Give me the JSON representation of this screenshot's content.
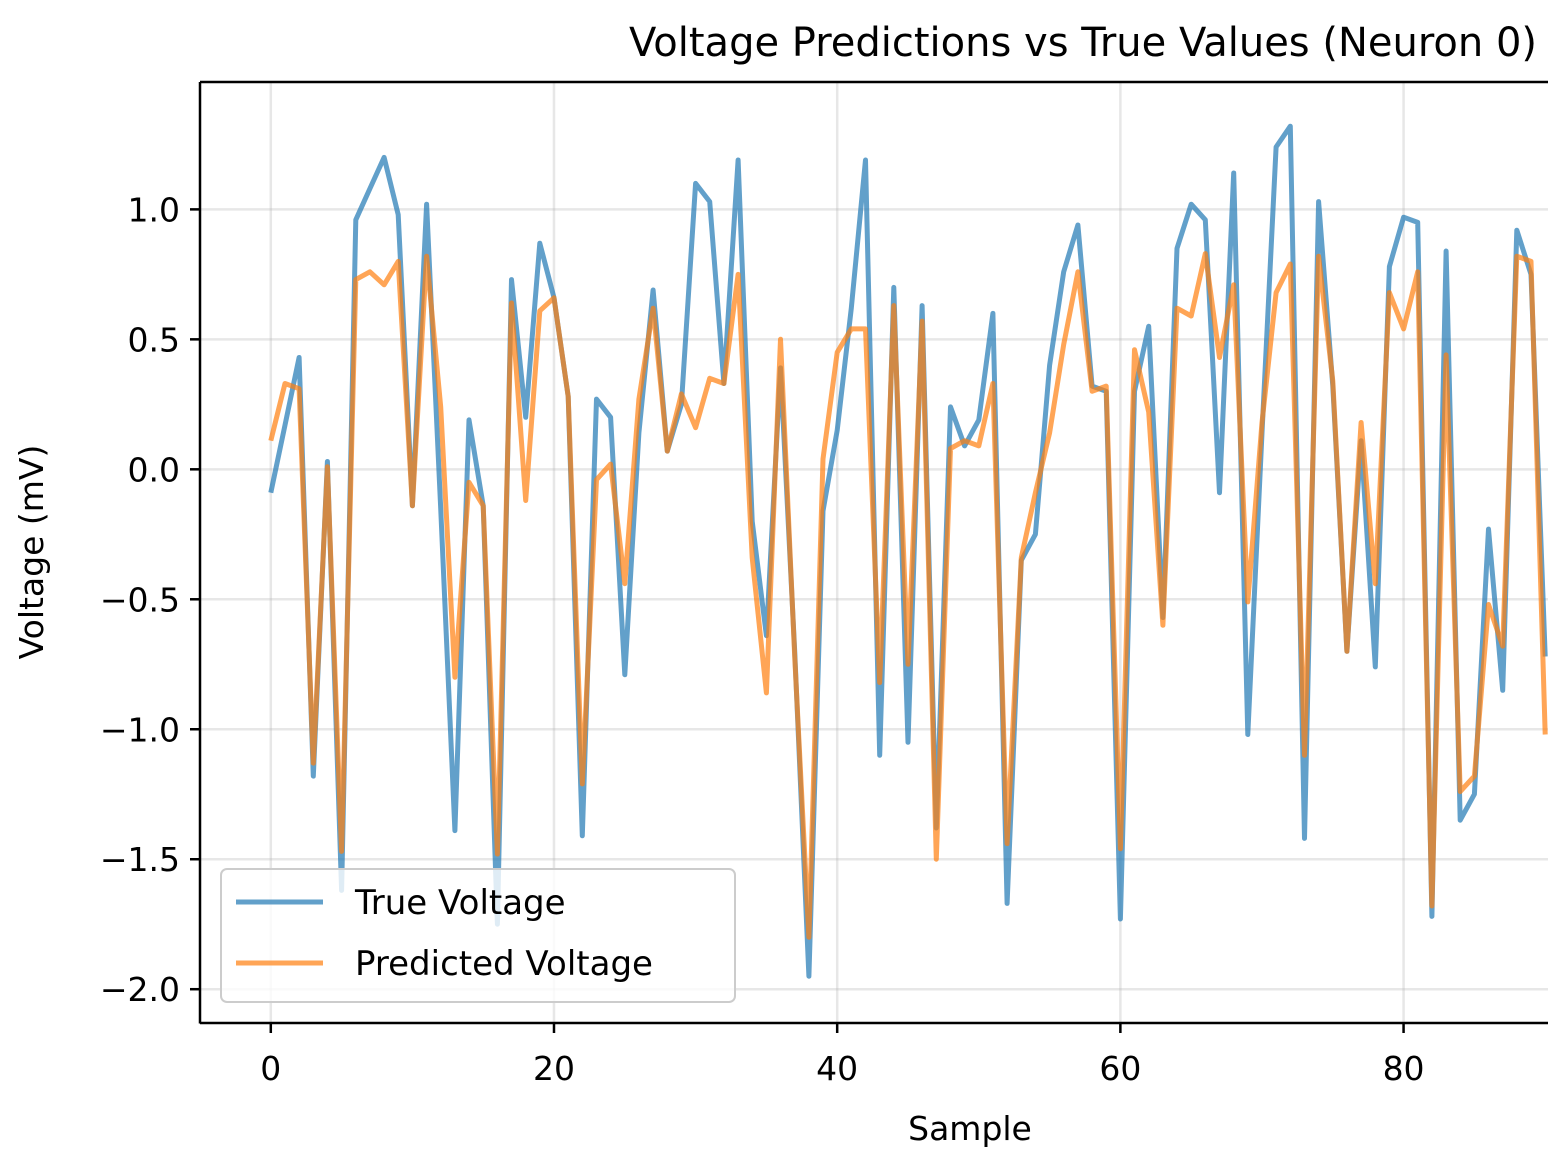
{
  "chart_data": {
    "type": "line",
    "title": "Voltage Predictions vs True Values (Neuron 0)",
    "xlabel": "Sample",
    "ylabel": "Voltage (mV)",
    "xlim": [
      -5,
      90.2
    ],
    "ylim": [
      -2.13,
      1.49
    ],
    "xticks": [
      0,
      20,
      40,
      60,
      80
    ],
    "xtick_labels": [
      "0",
      "20",
      "40",
      "60",
      "80"
    ],
    "yticks": [
      1.0,
      0.5,
      0.0,
      -0.5,
      -1.0,
      -1.5,
      -2.0
    ],
    "ytick_labels": [
      "1.0",
      "0.5",
      "0.0",
      "−0.5",
      "−1.0",
      "−1.5",
      "−2.0"
    ],
    "grid": true,
    "legend_position": "lower-left",
    "series": [
      {
        "name": "True Voltage",
        "color": "#1f77b4",
        "values": [
          -0.09,
          0.17,
          0.43,
          -1.18,
          0.03,
          -1.62,
          0.96,
          1.08,
          1.2,
          0.98,
          -0.14,
          1.02,
          -0.15,
          -1.39,
          0.19,
          -0.14,
          -1.75,
          0.73,
          0.2,
          0.87,
          0.66,
          0.28,
          -1.41,
          0.27,
          0.2,
          -0.79,
          0.14,
          0.69,
          0.07,
          0.25,
          1.1,
          1.03,
          0.33,
          1.19,
          -0.2,
          -0.64,
          0.39,
          -0.7,
          -1.95,
          -0.16,
          0.15,
          0.62,
          1.19,
          -1.1,
          0.7,
          -1.05,
          0.63,
          -1.38,
          0.24,
          0.09,
          0.19,
          0.6,
          -1.67,
          -0.35,
          -0.25,
          0.4,
          0.76,
          0.94,
          0.32,
          0.3,
          -1.73,
          0.3,
          0.55,
          -0.57,
          0.85,
          1.02,
          0.96,
          -0.09,
          1.14,
          -1.02,
          0.14,
          1.24,
          1.32,
          -1.42,
          1.03,
          0.32,
          -0.7,
          0.11,
          -0.76,
          0.78,
          0.97,
          0.95,
          -1.72,
          0.84,
          -1.35,
          -1.25,
          -0.23,
          -0.85,
          0.92,
          0.75,
          -0.72
        ]
      },
      {
        "name": "Predicted Voltage",
        "color": "#ff7f0e",
        "values": [
          0.11,
          0.33,
          0.31,
          -1.13,
          0.01,
          -1.47,
          0.73,
          0.76,
          0.71,
          0.8,
          -0.14,
          0.82,
          0.24,
          -0.8,
          -0.05,
          -0.14,
          -1.48,
          0.64,
          -0.12,
          0.61,
          0.66,
          0.28,
          -1.21,
          -0.04,
          0.02,
          -0.44,
          0.27,
          0.62,
          0.07,
          0.29,
          0.16,
          0.35,
          0.33,
          0.75,
          -0.34,
          -0.86,
          0.5,
          -0.72,
          -1.8,
          0.04,
          0.45,
          0.54,
          0.54,
          -0.82,
          0.63,
          -0.75,
          0.57,
          -1.5,
          0.08,
          0.11,
          0.09,
          0.33,
          -1.44,
          -0.34,
          -0.09,
          0.14,
          0.48,
          0.76,
          0.3,
          0.32,
          -1.46,
          0.46,
          0.22,
          -0.6,
          0.62,
          0.59,
          0.83,
          0.43,
          0.71,
          -0.51,
          0.18,
          0.68,
          0.79,
          -1.1,
          0.82,
          0.34,
          -0.7,
          0.18,
          -0.44,
          0.68,
          0.54,
          0.76,
          -1.68,
          0.44,
          -1.24,
          -1.18,
          -0.52,
          -0.68,
          0.82,
          0.8,
          -1.02
        ]
      }
    ]
  }
}
